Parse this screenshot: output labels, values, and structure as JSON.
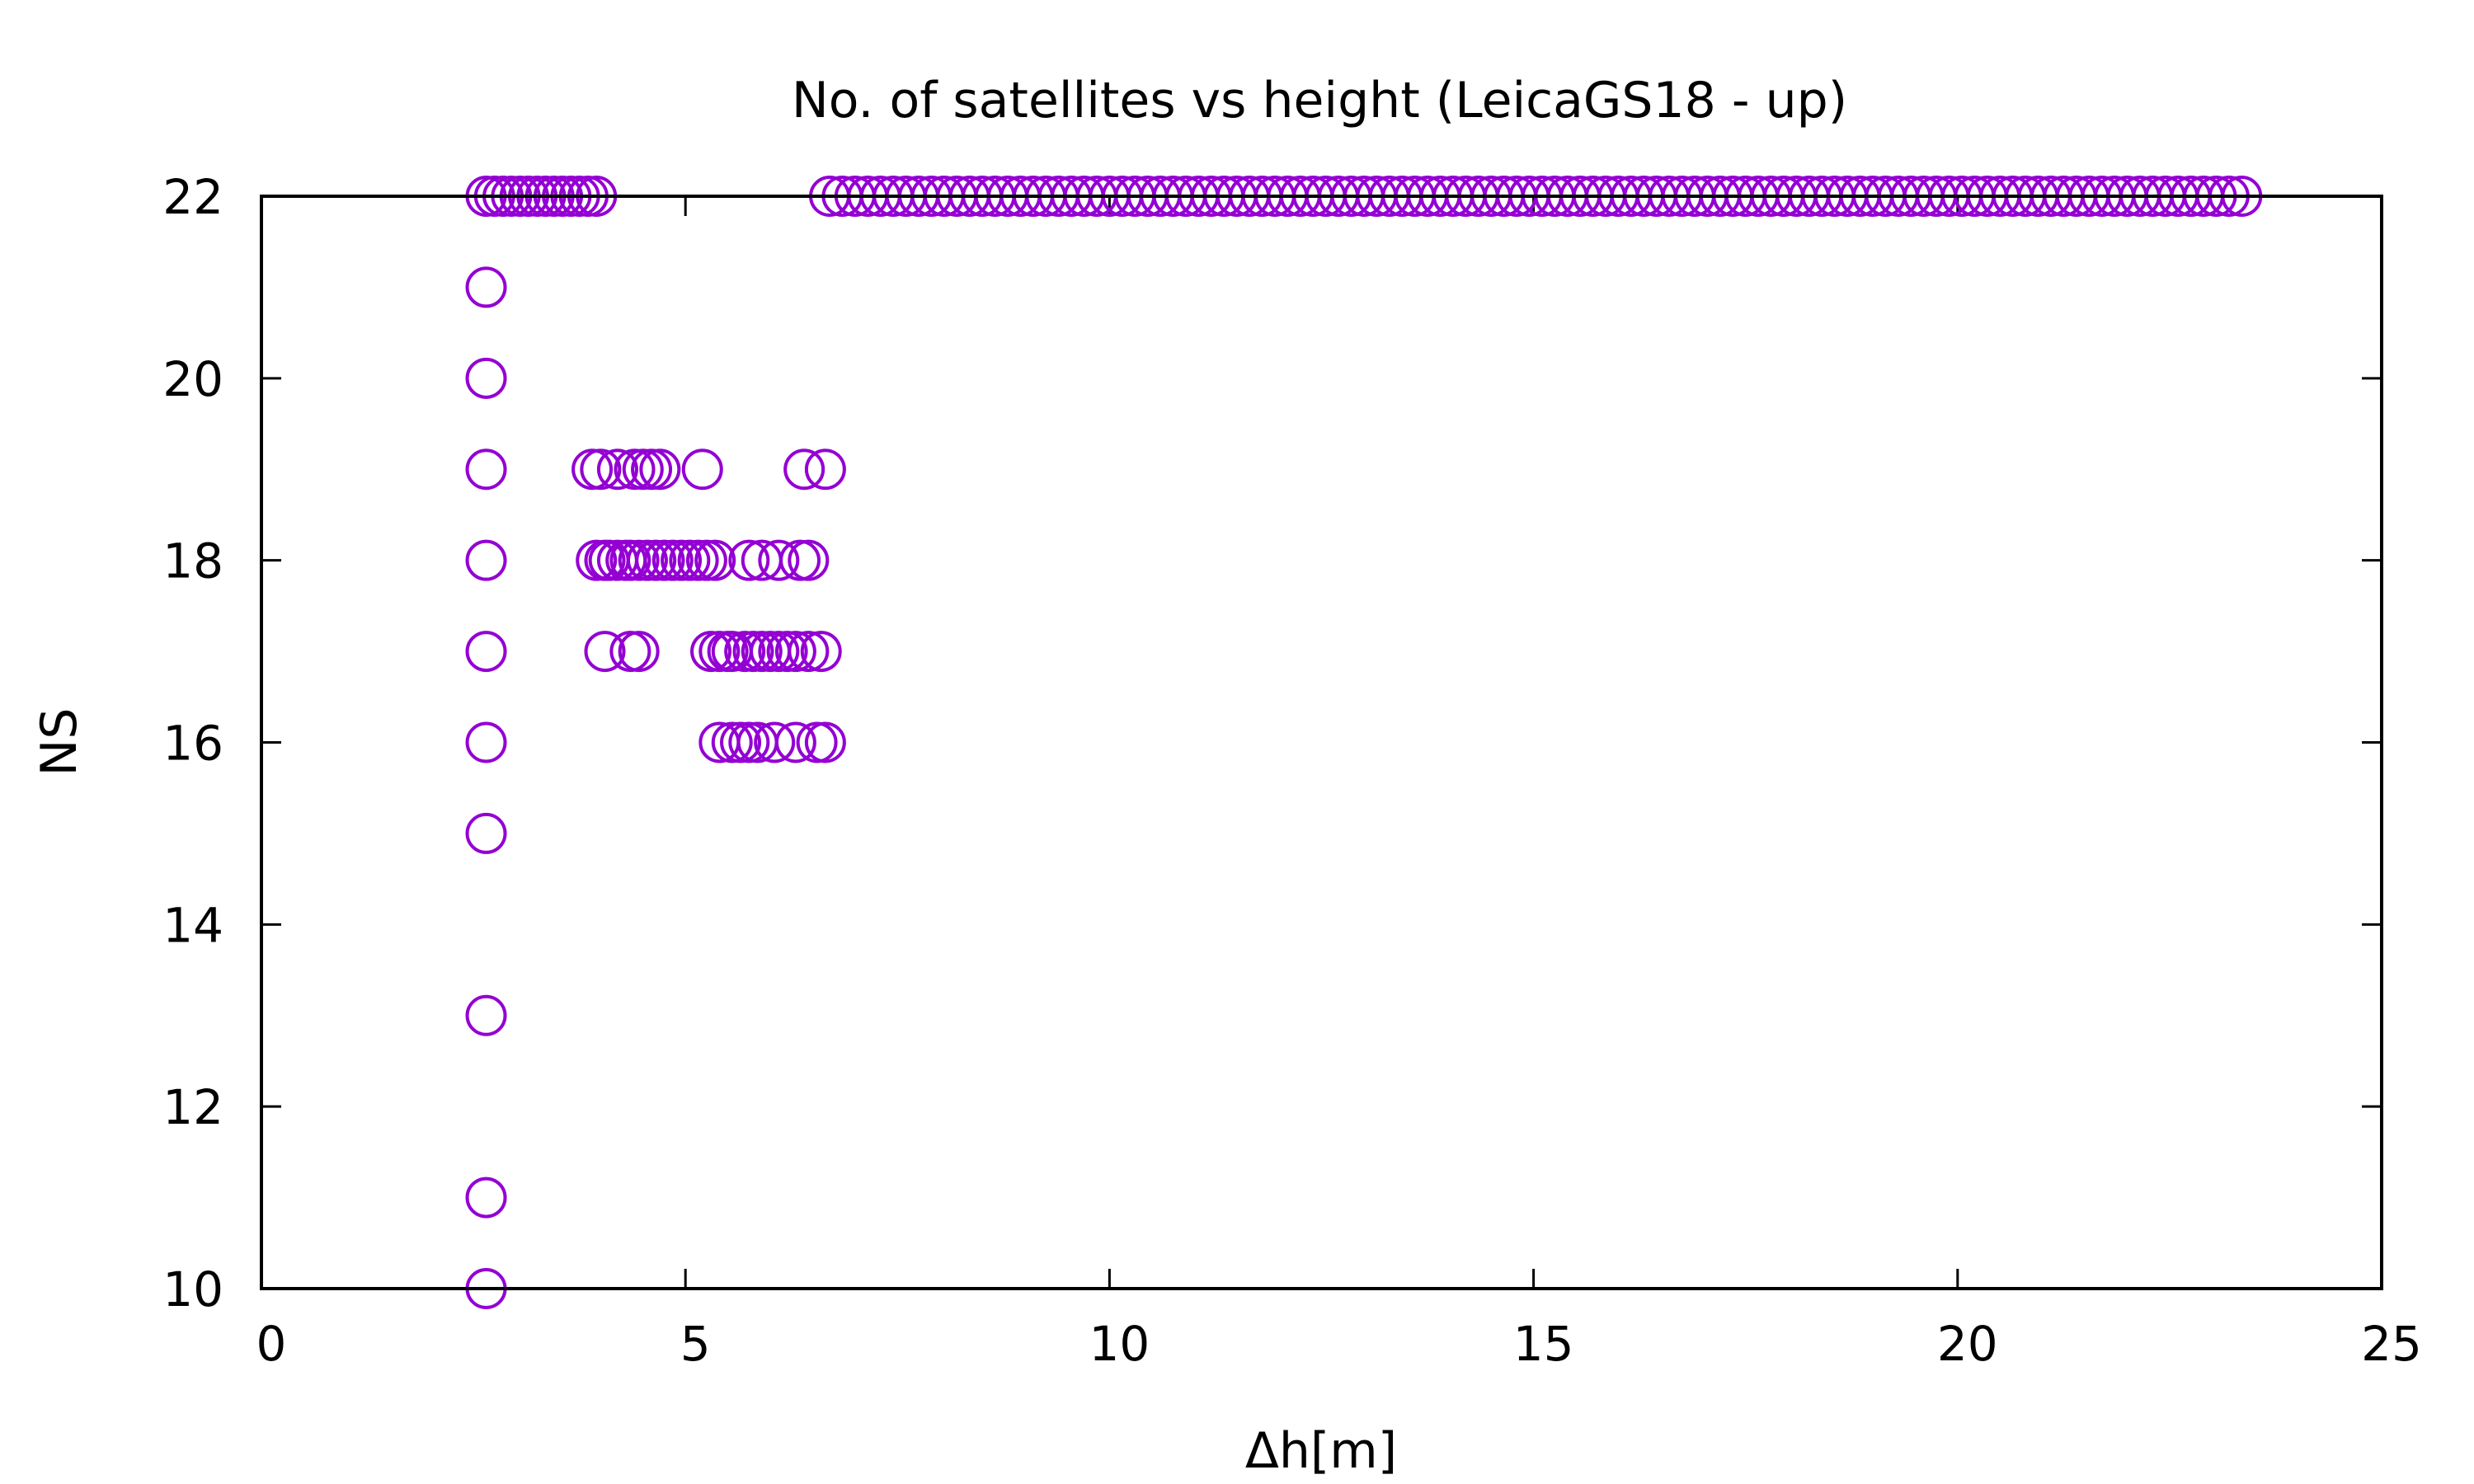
{
  "chart_data": {
    "type": "scatter",
    "title": "No. of satellites vs height (LeicaGS18 - up)",
    "xlabel": "Δh[m]",
    "ylabel": "NS",
    "xlim": [
      0,
      25
    ],
    "ylim": [
      10,
      22
    ],
    "xticks": [
      0,
      5,
      10,
      15,
      20,
      25
    ],
    "yticks": [
      10,
      12,
      14,
      16,
      18,
      20,
      22
    ],
    "grid": false,
    "legend": "none",
    "marker": "open-circle",
    "color": "#9400D3",
    "points": [
      [
        2.65,
        22
      ],
      [
        2.75,
        22
      ],
      [
        2.85,
        22
      ],
      [
        2.95,
        22
      ],
      [
        3.05,
        22
      ],
      [
        3.15,
        22
      ],
      [
        3.25,
        22
      ],
      [
        3.35,
        22
      ],
      [
        3.45,
        22
      ],
      [
        3.55,
        22
      ],
      [
        3.65,
        22
      ],
      [
        3.75,
        22
      ],
      [
        3.85,
        22
      ],
      [
        3.95,
        22
      ],
      [
        6.7,
        22
      ],
      [
        6.85,
        22
      ],
      [
        7.0,
        22
      ],
      [
        7.15,
        22
      ],
      [
        7.3,
        22
      ],
      [
        7.45,
        22
      ],
      [
        7.6,
        22
      ],
      [
        7.75,
        22
      ],
      [
        7.9,
        22
      ],
      [
        8.05,
        22
      ],
      [
        8.2,
        22
      ],
      [
        8.35,
        22
      ],
      [
        8.5,
        22
      ],
      [
        8.65,
        22
      ],
      [
        8.8,
        22
      ],
      [
        8.95,
        22
      ],
      [
        9.1,
        22
      ],
      [
        9.25,
        22
      ],
      [
        9.4,
        22
      ],
      [
        9.55,
        22
      ],
      [
        9.7,
        22
      ],
      [
        9.85,
        22
      ],
      [
        10.0,
        22
      ],
      [
        10.15,
        22
      ],
      [
        10.3,
        22
      ],
      [
        10.45,
        22
      ],
      [
        10.6,
        22
      ],
      [
        10.75,
        22
      ],
      [
        10.9,
        22
      ],
      [
        11.05,
        22
      ],
      [
        11.2,
        22
      ],
      [
        11.35,
        22
      ],
      [
        11.5,
        22
      ],
      [
        11.65,
        22
      ],
      [
        11.8,
        22
      ],
      [
        11.95,
        22
      ],
      [
        12.1,
        22
      ],
      [
        12.25,
        22
      ],
      [
        12.4,
        22
      ],
      [
        12.55,
        22
      ],
      [
        12.7,
        22
      ],
      [
        12.85,
        22
      ],
      [
        13.0,
        22
      ],
      [
        13.15,
        22
      ],
      [
        13.3,
        22
      ],
      [
        13.45,
        22
      ],
      [
        13.6,
        22
      ],
      [
        13.75,
        22
      ],
      [
        13.9,
        22
      ],
      [
        14.05,
        22
      ],
      [
        14.2,
        22
      ],
      [
        14.35,
        22
      ],
      [
        14.5,
        22
      ],
      [
        14.65,
        22
      ],
      [
        14.8,
        22
      ],
      [
        14.95,
        22
      ],
      [
        15.1,
        22
      ],
      [
        15.25,
        22
      ],
      [
        15.4,
        22
      ],
      [
        15.55,
        22
      ],
      [
        15.7,
        22
      ],
      [
        15.85,
        22
      ],
      [
        16.0,
        22
      ],
      [
        16.15,
        22
      ],
      [
        16.3,
        22
      ],
      [
        16.45,
        22
      ],
      [
        16.6,
        22
      ],
      [
        16.75,
        22
      ],
      [
        16.9,
        22
      ],
      [
        17.05,
        22
      ],
      [
        17.2,
        22
      ],
      [
        17.35,
        22
      ],
      [
        17.5,
        22
      ],
      [
        17.65,
        22
      ],
      [
        17.8,
        22
      ],
      [
        17.95,
        22
      ],
      [
        18.1,
        22
      ],
      [
        18.25,
        22
      ],
      [
        18.4,
        22
      ],
      [
        18.55,
        22
      ],
      [
        18.7,
        22
      ],
      [
        18.85,
        22
      ],
      [
        19.0,
        22
      ],
      [
        19.15,
        22
      ],
      [
        19.3,
        22
      ],
      [
        19.45,
        22
      ],
      [
        19.6,
        22
      ],
      [
        19.75,
        22
      ],
      [
        19.9,
        22
      ],
      [
        20.05,
        22
      ],
      [
        20.2,
        22
      ],
      [
        20.35,
        22
      ],
      [
        20.5,
        22
      ],
      [
        20.65,
        22
      ],
      [
        20.8,
        22
      ],
      [
        20.95,
        22
      ],
      [
        21.1,
        22
      ],
      [
        21.25,
        22
      ],
      [
        21.4,
        22
      ],
      [
        21.55,
        22
      ],
      [
        21.7,
        22
      ],
      [
        21.85,
        22
      ],
      [
        22.0,
        22
      ],
      [
        22.15,
        22
      ],
      [
        22.3,
        22
      ],
      [
        22.45,
        22
      ],
      [
        22.6,
        22
      ],
      [
        22.75,
        22
      ],
      [
        22.9,
        22
      ],
      [
        23.05,
        22
      ],
      [
        23.2,
        22
      ],
      [
        23.35,
        22
      ],
      [
        2.65,
        21
      ],
      [
        2.65,
        20
      ],
      [
        2.65,
        19
      ],
      [
        2.65,
        18
      ],
      [
        2.65,
        17
      ],
      [
        2.65,
        16
      ],
      [
        2.65,
        15
      ],
      [
        2.65,
        13
      ],
      [
        2.65,
        11
      ],
      [
        2.65,
        10
      ],
      [
        3.9,
        19
      ],
      [
        4.0,
        19
      ],
      [
        4.2,
        19
      ],
      [
        4.4,
        19
      ],
      [
        4.5,
        19
      ],
      [
        4.6,
        19
      ],
      [
        4.7,
        19
      ],
      [
        5.2,
        19
      ],
      [
        6.4,
        19
      ],
      [
        6.65,
        19
      ],
      [
        3.95,
        18
      ],
      [
        4.05,
        18
      ],
      [
        4.1,
        18
      ],
      [
        4.2,
        18
      ],
      [
        4.3,
        18
      ],
      [
        4.35,
        18
      ],
      [
        4.45,
        18
      ],
      [
        4.55,
        18
      ],
      [
        4.65,
        18
      ],
      [
        4.75,
        18
      ],
      [
        4.85,
        18
      ],
      [
        4.95,
        18
      ],
      [
        5.05,
        18
      ],
      [
        5.15,
        18
      ],
      [
        5.25,
        18
      ],
      [
        5.35,
        18
      ],
      [
        5.75,
        18
      ],
      [
        5.9,
        18
      ],
      [
        6.1,
        18
      ],
      [
        6.35,
        18
      ],
      [
        6.45,
        18
      ],
      [
        4.05,
        17
      ],
      [
        4.35,
        17
      ],
      [
        4.45,
        17
      ],
      [
        5.3,
        17
      ],
      [
        5.4,
        17
      ],
      [
        5.5,
        17
      ],
      [
        5.55,
        17
      ],
      [
        5.7,
        17
      ],
      [
        5.8,
        17
      ],
      [
        5.9,
        17
      ],
      [
        6.0,
        17
      ],
      [
        6.1,
        17
      ],
      [
        6.2,
        17
      ],
      [
        6.3,
        17
      ],
      [
        6.45,
        17
      ],
      [
        6.6,
        17
      ],
      [
        5.4,
        16
      ],
      [
        5.55,
        16
      ],
      [
        5.65,
        16
      ],
      [
        5.75,
        16
      ],
      [
        5.85,
        16
      ],
      [
        6.05,
        16
      ],
      [
        6.3,
        16
      ],
      [
        6.55,
        16
      ],
      [
        6.65,
        16
      ]
    ]
  }
}
